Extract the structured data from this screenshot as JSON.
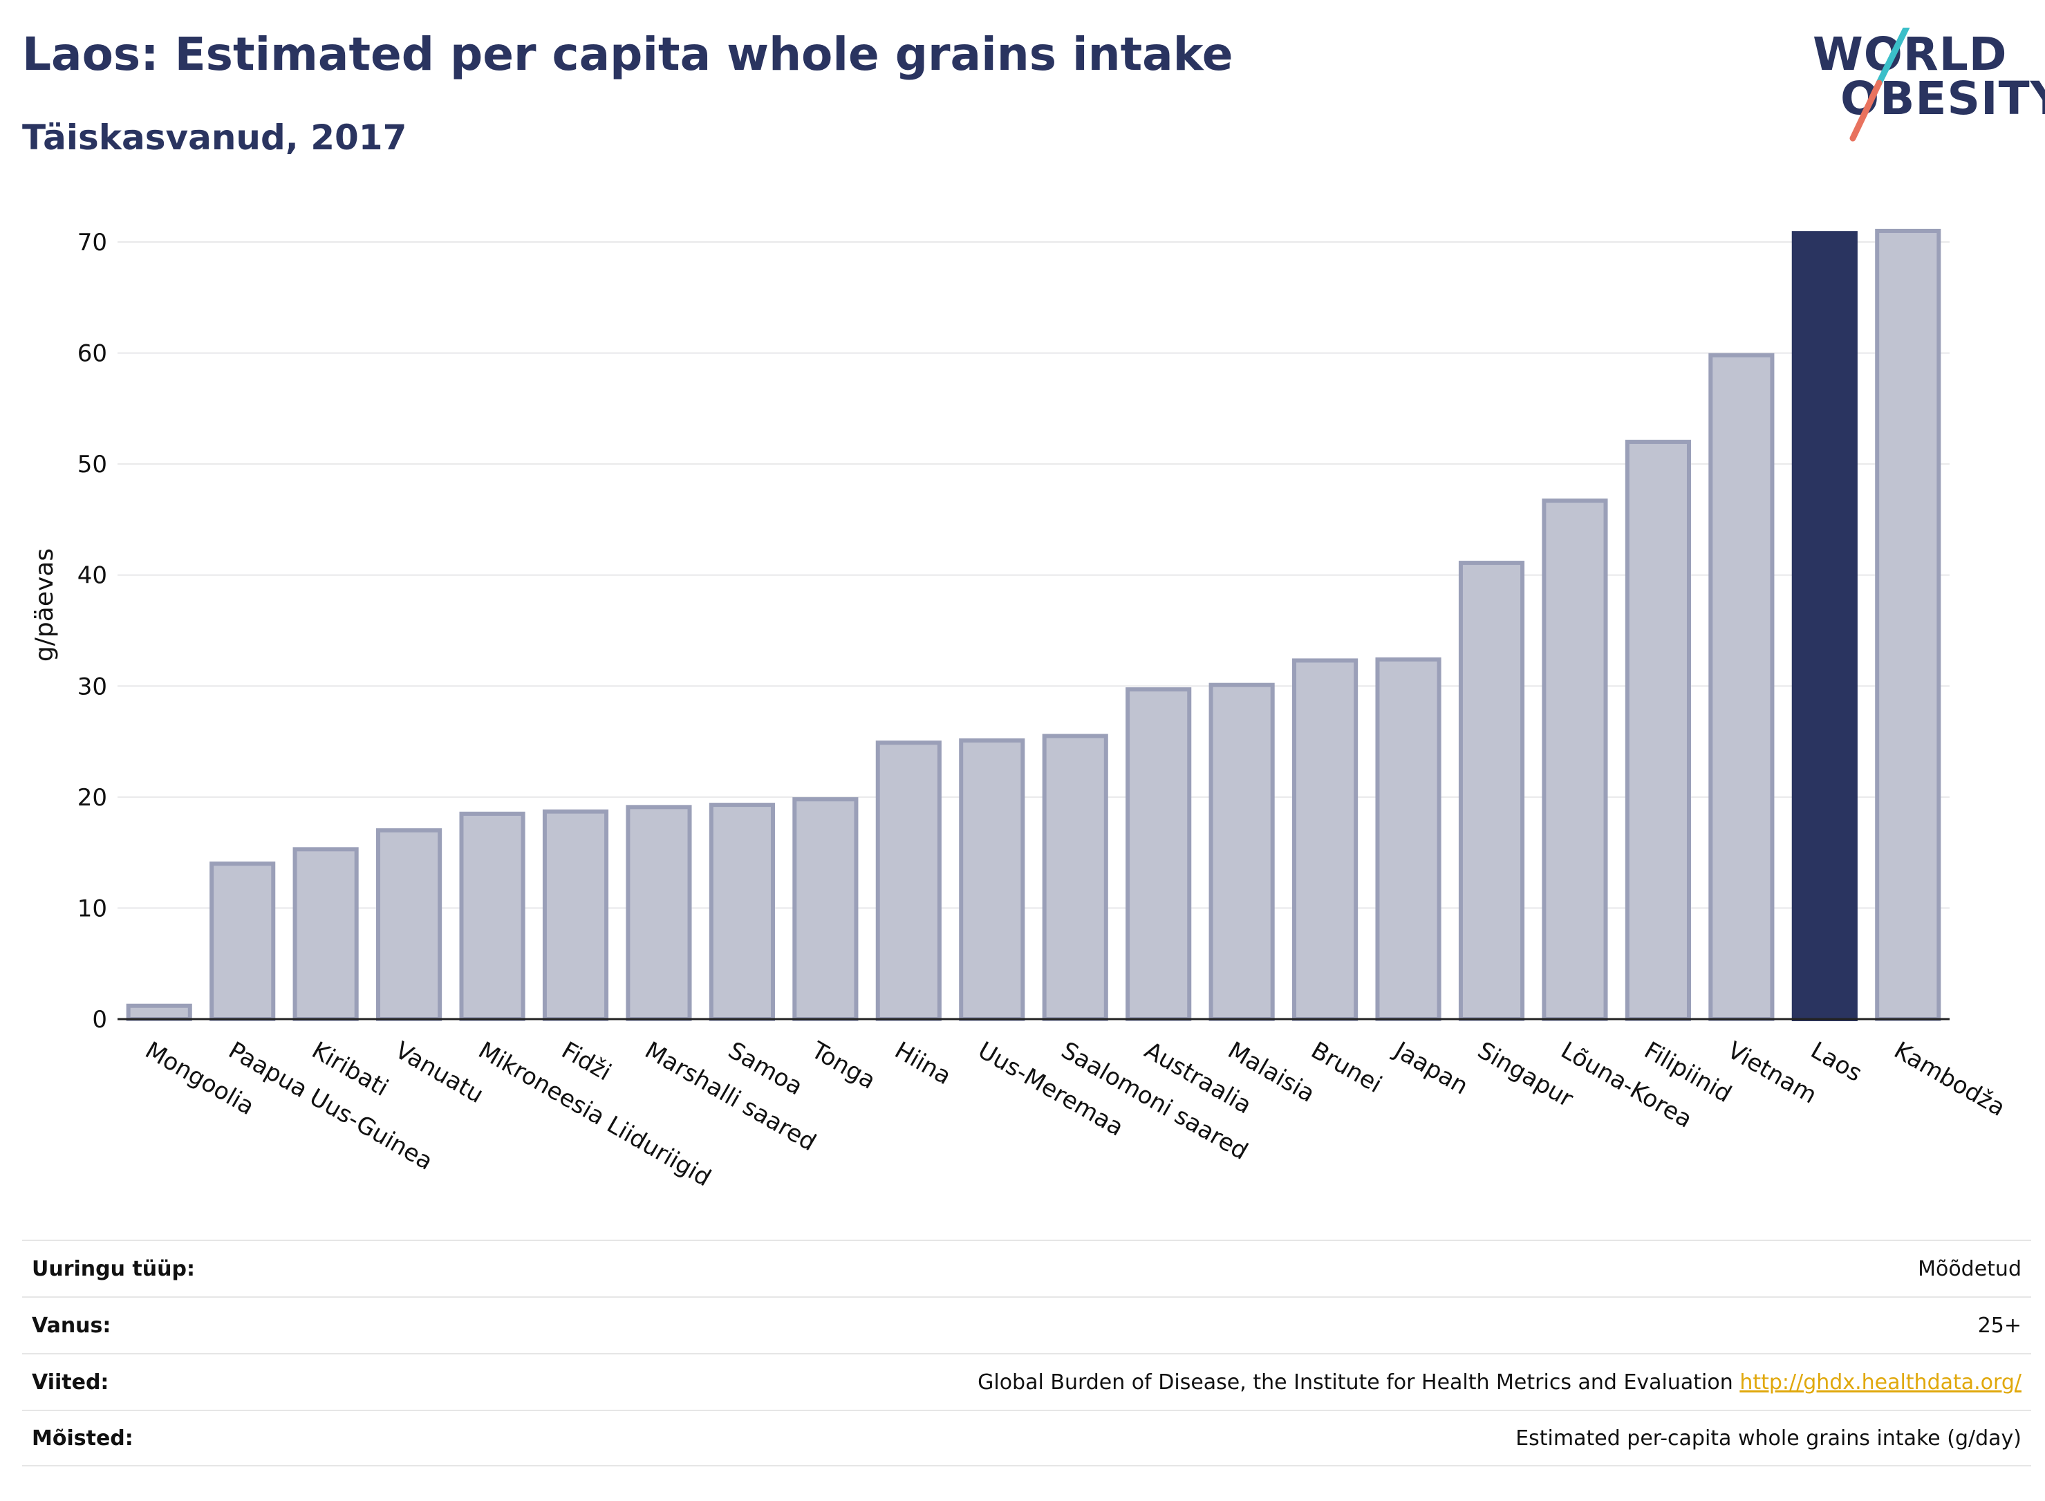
{
  "title": "Laos: Estimated per capita whole grains intake",
  "subtitle": "Täiskasvanud, 2017",
  "logo": {
    "line1": "WORLD",
    "line2": "OBESITY"
  },
  "colors": {
    "highlight": "#2a3460",
    "bar_fill": "#c0c3d1",
    "bar_stroke": "#9a9fb8",
    "link": "#e0a80c"
  },
  "chart_data": {
    "type": "bar",
    "categories": [
      "Mongoolia",
      "Paapua Uus-Guinea",
      "Kiribati",
      "Vanuatu",
      "Mikroneesia Liiduriigid",
      "Fidži",
      "Marshalli saared",
      "Samoa",
      "Tonga",
      "Hiina",
      "Uus-Meremaa",
      "Saalomoni saared",
      "Austraalia",
      "Malaisia",
      "Brunei",
      "Jaapan",
      "Singapur",
      "Lõuna-Korea",
      "Filipiinid",
      "Vietnam",
      "Laos",
      "Kambodža"
    ],
    "values": [
      1.2,
      14.0,
      15.3,
      17.0,
      18.5,
      18.7,
      19.1,
      19.3,
      19.8,
      24.9,
      25.1,
      25.5,
      29.7,
      30.1,
      32.3,
      32.4,
      41.1,
      46.7,
      52.0,
      59.8,
      70.8,
      71.0
    ],
    "highlight": "Laos",
    "ylabel": "g/päevas",
    "yticks": [
      0,
      10,
      20,
      30,
      40,
      50,
      60,
      70
    ],
    "ylim": [
      0,
      75
    ],
    "grid": true
  },
  "info": [
    {
      "label": "Uuringu tüüp:",
      "value": "Mõõdetud",
      "link": ""
    },
    {
      "label": "Vanus:",
      "value": "25+",
      "link": ""
    },
    {
      "label": "Viited:",
      "value": "Global Burden of Disease, the Institute for Health Metrics and Evaluation",
      "link": "http://ghdx.healthdata.org/"
    },
    {
      "label": "Mõisted:",
      "value": "Estimated per-capita whole grains intake (g/day)",
      "link": ""
    }
  ]
}
